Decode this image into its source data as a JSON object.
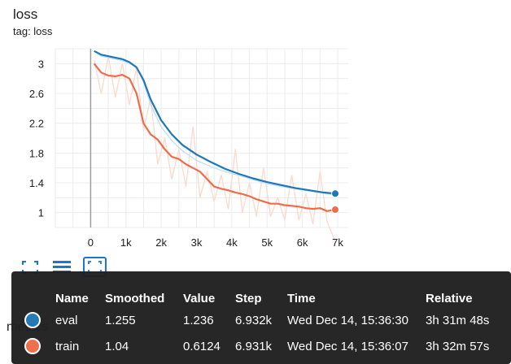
{
  "card": {
    "title": "loss",
    "tag": "tag: loss",
    "behind_label": "metrics"
  },
  "toolbar": [
    {
      "name": "fullscreen-icon"
    },
    {
      "name": "toggle-y-log-icon"
    },
    {
      "name": "fit-domain-icon"
    }
  ],
  "tooltip": {
    "headers": [
      "Name",
      "Smoothed",
      "Value",
      "Step",
      "Time",
      "Relative"
    ],
    "rows": [
      {
        "name": "eval",
        "color": "#1f77b4",
        "smoothed": "1.255",
        "value": "1.236",
        "step": "6.932k",
        "time": "Wed Dec 14, 15:36:30",
        "relative": "3h 31m 48s"
      },
      {
        "name": "train",
        "color": "#ef6c4a",
        "smoothed": "1.04",
        "value": "0.6124",
        "step": "6.931k",
        "time": "Wed Dec 14, 15:36:07",
        "relative": "3h 32m 57s"
      }
    ]
  },
  "chart_data": {
    "type": "line",
    "x_ticks": [
      "0",
      "1k",
      "2k",
      "3k",
      "4k",
      "5k",
      "6k",
      "7k"
    ],
    "x_tick_values": [
      0,
      1000,
      2000,
      3000,
      4000,
      5000,
      6000,
      7000
    ],
    "y_ticks": [
      "1",
      "1.4",
      "1.8",
      "2.2",
      "2.6",
      "3"
    ],
    "y_tick_values": [
      1,
      1.4,
      1.8,
      2.2,
      2.6,
      3
    ],
    "xlim": [
      -1000,
      7300
    ],
    "ylim": [
      0.8,
      3.2
    ],
    "grid": true,
    "series": [
      {
        "name": "eval",
        "color": "#1f77b4",
        "raw_color": "#bbdefb",
        "x": [
          100,
          300,
          600,
          900,
          1100,
          1300,
          1500,
          1700,
          2000,
          2300,
          2600,
          3000,
          3400,
          3800,
          4200,
          4600,
          5000,
          5400,
          5800,
          6200,
          6600,
          6932
        ],
        "raw_y": [
          3.17,
          3.1,
          3.07,
          3.04,
          3.0,
          2.95,
          2.75,
          2.45,
          2.15,
          1.97,
          1.83,
          1.7,
          1.62,
          1.55,
          1.5,
          1.44,
          1.39,
          1.35,
          1.32,
          1.29,
          1.26,
          1.236
        ],
        "smoothed_y": [
          3.17,
          3.12,
          3.09,
          3.06,
          3.02,
          2.95,
          2.78,
          2.52,
          2.24,
          2.05,
          1.91,
          1.78,
          1.68,
          1.59,
          1.52,
          1.46,
          1.41,
          1.37,
          1.33,
          1.3,
          1.27,
          1.255
        ]
      },
      {
        "name": "train",
        "color": "#ef6c4a",
        "raw_color": "#fdd8cc",
        "x": [
          100,
          300,
          500,
          700,
          900,
          1100,
          1300,
          1500,
          1700,
          1900,
          2100,
          2300,
          2500,
          2700,
          2900,
          3100,
          3300,
          3500,
          3700,
          3900,
          4100,
          4300,
          4500,
          4700,
          4900,
          5100,
          5300,
          5500,
          5700,
          5900,
          6100,
          6300,
          6500,
          6700,
          6931
        ],
        "raw_y": [
          3.05,
          2.6,
          3.1,
          2.55,
          3.0,
          2.45,
          2.95,
          2.1,
          2.55,
          1.65,
          2.0,
          1.45,
          1.85,
          1.35,
          2.15,
          1.2,
          1.55,
          1.15,
          1.5,
          1.05,
          1.85,
          1.0,
          1.4,
          0.95,
          1.6,
          0.95,
          1.2,
          0.9,
          1.5,
          0.9,
          1.25,
          0.85,
          1.55,
          0.88,
          0.6124
        ],
        "smoothed_y": [
          3.0,
          2.88,
          2.84,
          2.83,
          2.85,
          2.8,
          2.6,
          2.2,
          2.05,
          1.98,
          1.85,
          1.75,
          1.72,
          1.65,
          1.6,
          1.55,
          1.45,
          1.35,
          1.32,
          1.3,
          1.27,
          1.25,
          1.22,
          1.18,
          1.15,
          1.12,
          1.12,
          1.1,
          1.09,
          1.08,
          1.06,
          1.05,
          1.06,
          1.02,
          1.04
        ]
      }
    ]
  }
}
